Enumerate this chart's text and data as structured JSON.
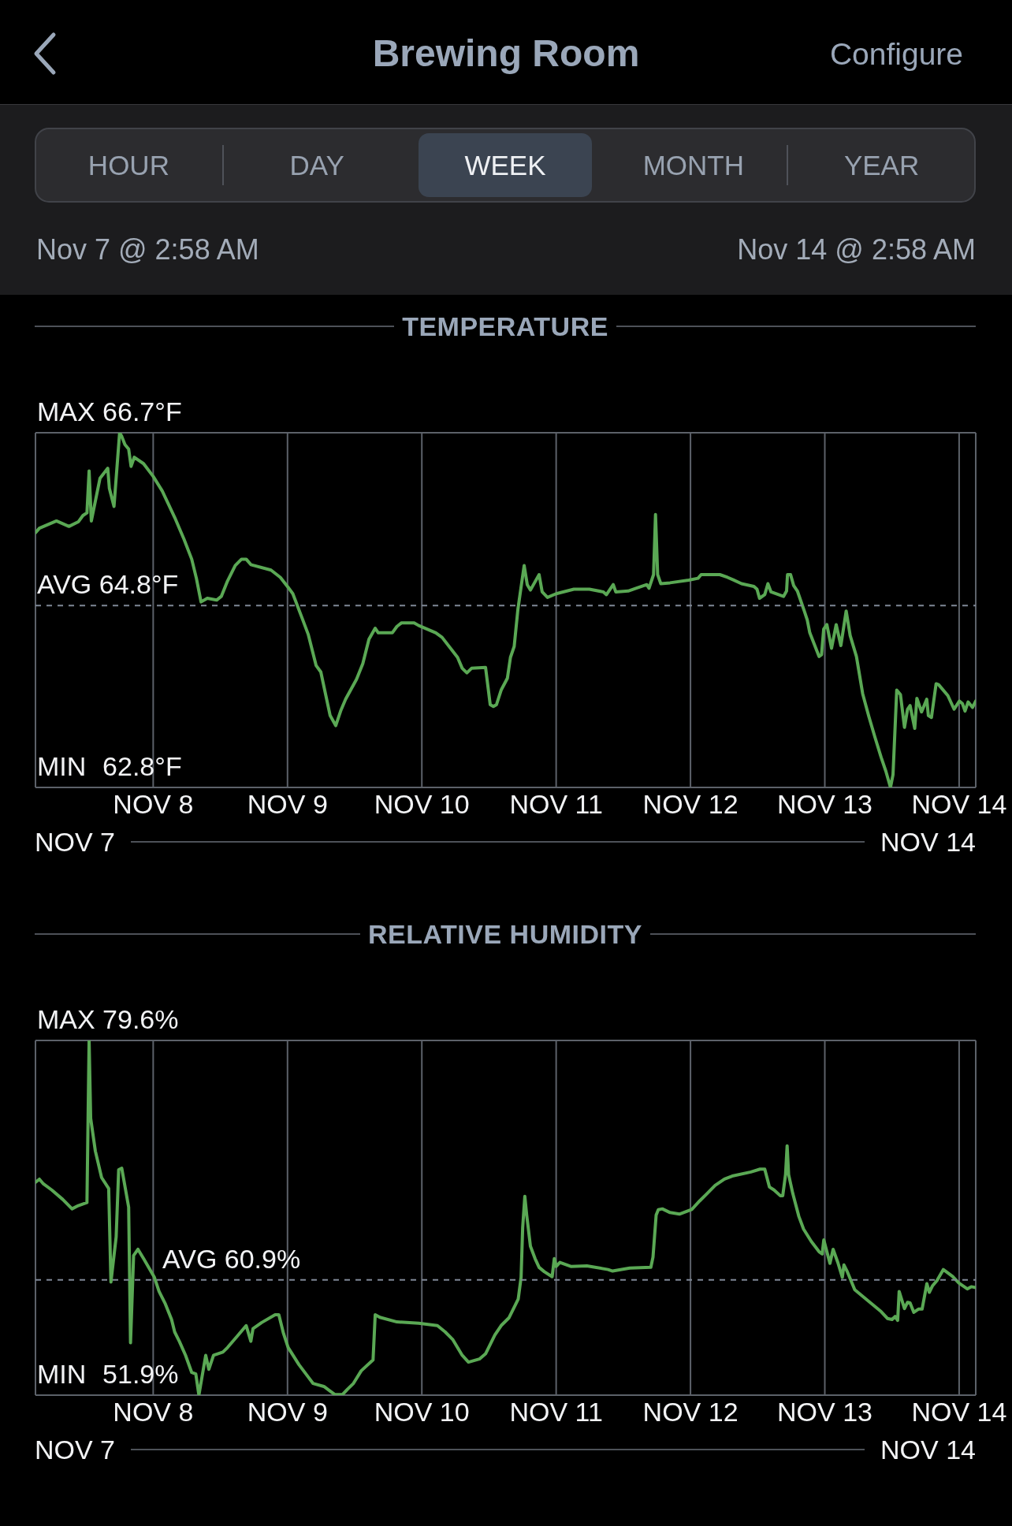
{
  "chart_data": [
    {
      "type": "other",
      "title": "Brewing Room",
      "annotations": [
        "Configure",
        "HOUR",
        "DAY",
        "WEEK",
        "MONTH",
        "YEAR",
        "Nov 7 @ 2:58 AM",
        "Nov 14 @ 2:58 AM"
      ]
    },
    {
      "type": "line",
      "title": "TEMPERATURE",
      "color": "#5aa854",
      "x": [
        "--11-07T02:58",
        "--11-07T03:40",
        "--11-07T06:43",
        "--11-07T08:57",
        "--11-07T10:37",
        "--11-07T11:27",
        "--11-07T12:10",
        "--11-07T12:33",
        "--11-07T12:57",
        "--11-07T14:30",
        "--11-07T15:53",
        "--11-07T16:10",
        "--11-07T17:00",
        "--11-07T18:00",
        "--11-07T18:23",
        "--11-07T18:57",
        "--11-07T19:37",
        "--11-07T20:03",
        "--11-07T20:37",
        "--11-07T22:17",
        "--11-08T00:00",
        "--11-08T01:37",
        "--11-08T03:50",
        "--11-08T05:30",
        "--11-08T06:53",
        "--11-08T07:43",
        "--11-08T08:33",
        "--11-08T09:40",
        "--11-08T11:20",
        "--11-08T12:10",
        "--11-08T13:17",
        "--11-08T14:40",
        "--11-08T15:47",
        "--11-08T16:37",
        "--11-08T17:27",
        "--11-08T21:03",
        "--11-08T22:43",
        "--11-09T00:07",
        "--11-09T00:57",
        "--11-09T02:37",
        "--11-09T03:43",
        "--11-09T05:07",
        "--11-09T05:57",
        "--11-09T07:37",
        "--11-09T08:37",
        "--11-09T09:33",
        "--11-09T10:23",
        "--11-09T12:20",
        "--11-09T13:27",
        "--11-09T14:33",
        "--11-09T15:40",
        "--11-09T16:13",
        "--11-09T18:43",
        "--11-09T19:33",
        "--11-09T20:23",
        "--11-09T22:37",
        "--11-09T23:27",
        "--11-10T02:30",
        "--11-10T03:37",
        "--11-10T06:23",
        "--11-10T07:13",
        "--11-10T08:03",
        "--11-10T08:53",
        "--11-10T11:23",
        "--11-10T12:13",
        "--11-10T12:47",
        "--11-10T13:20",
        "--11-10T14:10",
        "--11-10T15:17",
        "--11-10T15:50",
        "--11-10T16:30",
        "--11-10T17:10",
        "--11-10T18:17",
        "--11-10T18:50",
        "--11-10T19:24",
        "--11-10T20:57",
        "--11-10T21:30",
        "--11-10T22:27",
        "--11-11T00:00",
        "--11-11T03:10",
        "--11-11T05:56",
        "--11-11T08:26",
        "--11-11T08:59",
        "--11-11T10:12",
        "--11-11T10:39",
        "--11-11T12:52",
        "--11-11T14:15",
        "--11-11T16:12",
        "--11-11T16:35",
        "--11-11T17:24",
        "--11-11T17:45",
        "--11-11T18:08",
        "--11-11T18:42",
        "--11-11T20:21",
        "--11-11T23:41",
        "--11-12T01:21",
        "--11-12T01:54",
        "--11-12T03:00",
        "--11-12T05:14",
        "--11-12T06:37",
        "--11-12T07:43",
        "--11-12T09:07",
        "--11-12T11:20",
        "--11-12T11:53",
        "--11-12T12:20",
        "--11-12T13:16",
        "--11-12T13:50",
        "--11-12T14:23",
        "--11-12T16:37",
        "--11-12T17:10",
        "--11-12T17:20",
        "--11-12T17:53",
        "--11-12T18:26",
        "--11-12T19:06",
        "--11-12T20:20",
        "--11-12T20:52",
        "--11-12T21:19",
        "--11-12T22:58",
        "--11-12T23:25",
        "--11-12T23:48",
        "--11-13T00:22",
        "--11-13T01:12",
        "--11-13T02:02",
        "--11-13T02:52",
        "--11-13T03:49",
        "--11-13T04:32",
        "--11-13T05:39",
        "--11-13T06:46",
        "--11-13T07:52",
        "--11-13T08:58",
        "--11-13T10:04",
        "--11-13T10:54",
        "--11-13T11:44",
        "--11-13T12:11",
        "--11-13T12:51",
        "--11-13T13:31",
        "--11-13T14:14",
        "--11-13T14:47",
        "--11-13T15:14",
        "--11-13T16:04",
        "--11-13T16:27",
        "--11-13T17:17",
        "--11-13T18:13",
        "--11-13T18:30",
        "--11-13T19:03",
        "--11-13T19:53",
        "--11-13T20:20",
        "--11-13T21:59",
        "--11-13T23:06",
        "--11-14T00:03",
        "--11-14T00:36",
        "--11-14T01:03",
        "--11-14T01:36",
        "--11-14T02:24",
        "--11-14T02:58"
      ],
      "values": [
        65.6,
        65.65,
        65.73,
        65.67,
        65.72,
        65.79,
        65.82,
        66.28,
        65.73,
        66.2,
        66.31,
        66.09,
        65.89,
        66.7,
        66.66,
        66.57,
        66.52,
        66.33,
        66.43,
        66.36,
        66.22,
        66.06,
        65.77,
        65.53,
        65.31,
        65.1,
        64.84,
        64.88,
        64.86,
        64.9,
        65.07,
        65.24,
        65.31,
        65.31,
        65.25,
        65.19,
        65.11,
        65.0,
        64.93,
        64.66,
        64.48,
        64.14,
        64.07,
        63.59,
        63.48,
        63.65,
        63.77,
        63.99,
        64.16,
        64.43,
        64.55,
        64.5,
        64.5,
        64.57,
        64.61,
        64.61,
        64.58,
        64.5,
        64.45,
        64.23,
        64.11,
        64.06,
        64.11,
        64.12,
        63.71,
        63.69,
        63.71,
        63.87,
        64.0,
        64.23,
        64.35,
        64.76,
        65.24,
        65.03,
        64.97,
        65.14,
        64.95,
        64.89,
        64.93,
        64.98,
        64.98,
        64.95,
        64.92,
        65.03,
        64.95,
        64.96,
        64.99,
        65.03,
        64.99,
        65.14,
        65.8,
        65.14,
        65.04,
        65.05,
        65.08,
        65.1,
        65.14,
        65.14,
        65.14,
        65.11,
        65.08,
        65.04,
        65.01,
        64.98,
        64.88,
        64.92,
        65.04,
        64.95,
        64.9,
        64.96,
        65.14,
        65.14,
        65.02,
        64.96,
        64.74,
        64.64,
        64.5,
        64.24,
        64.26,
        64.54,
        64.59,
        64.33,
        64.59,
        64.36,
        64.74,
        64.47,
        64.24,
        63.83,
        63.58,
        63.35,
        63.13,
        62.98,
        62.8,
        62.94,
        63.87,
        63.82,
        63.46,
        63.66,
        63.7,
        63.45,
        63.78,
        63.63,
        63.77,
        63.59,
        63.57,
        63.94,
        63.93,
        63.81,
        63.66,
        63.75,
        63.72,
        63.64,
        63.74,
        63.68,
        63.75
      ],
      "xlim": [
        "--11-07T02:58",
        "--11-14T02:58"
      ],
      "xticks": [
        {
          "value": "--11-08",
          "label": "NOV 8"
        },
        {
          "value": "--11-09",
          "label": "NOV 9"
        },
        {
          "value": "--11-10",
          "label": "NOV 10"
        },
        {
          "value": "--11-11",
          "label": "NOV 11"
        },
        {
          "value": "--11-12",
          "label": "NOV 12"
        },
        {
          "value": "--11-13",
          "label": "NOV 13"
        },
        {
          "value": "--11-14",
          "label": "NOV 14"
        }
      ],
      "ylim": [
        62.8,
        66.7
      ],
      "yticks": [
        {
          "value": 66.7,
          "label": "66.7°F"
        },
        {
          "value": 62.8,
          "label": "62.8°F"
        }
      ],
      "grid": true,
      "ref_lines": [
        {
          "axis": "y",
          "value": 64.8,
          "label": "AVG 64.8°F",
          "color": "#7f8896",
          "line_style": "dashed"
        }
      ],
      "annotations": [
        "MAX",
        "MIN",
        "NOV 7",
        "NOV 14"
      ]
    },
    {
      "type": "line",
      "title": "RELATIVE HUMIDITY",
      "color": "#5aa854",
      "x": [
        "--11-07T02:58",
        "--11-07T03:40",
        "--11-07T04:23",
        "--11-07T05:53",
        "--11-07T07:50",
        "--11-07T09:30",
        "--11-07T10:37",
        "--11-07T12:10",
        "--11-07T12:33",
        "--11-07T12:50",
        "--11-07T13:40",
        "--11-07T14:47",
        "--11-07T16:03",
        "--11-07T16:27",
        "--11-07T17:23",
        "--11-07T17:50",
        "--11-07T18:23",
        "--11-07T19:37",
        "--11-07T19:57",
        "--11-07T20:30",
        "--11-07T21:17",
        "--11-07T22:17",
        "--11-08T00:13",
        "--11-08T01:03",
        "--11-08T02:10",
        "--11-08T03:17",
        "--11-08T03:50",
        "--11-08T04:40",
        "--11-08T05:47",
        "--11-08T06:53",
        "--11-08T07:37",
        "--11-08T08:10",
        "--11-08T09:23",
        "--11-08T09:57",
        "--11-08T10:47",
        "--11-08T12:27",
        "--11-08T13:17",
        "--11-08T14:57",
        "--11-08T16:37",
        "--11-08T17:27",
        "--11-08T17:50",
        "--11-08T19:23",
        "--11-08T21:47",
        "--11-08T22:27",
        "--11-08T23:17",
        "--11-09T00:07",
        "--11-09T02:03",
        "--11-09T03:43",
        "--11-09T04:33",
        "--11-09T06:30",
        "--11-09T07:37",
        "--11-09T08:27",
        "--11-09T09:50",
        "--11-09T10:40",
        "--11-09T11:47",
        "--11-09T13:10",
        "--11-09T15:17",
        "--11-09T15:40",
        "--11-09T16:30",
        "--11-09T19:33",
        "--11-09T23:27",
        "--11-10T02:47",
        "--11-10T04:10",
        "--11-10T05:33",
        "--11-10T07:13",
        "--11-10T08:20",
        "--11-10T10:17",
        "--11-10T11:23",
        "--11-10T13:03",
        "--11-10T14:10",
        "--11-10T15:33",
        "--11-10T16:40",
        "--11-10T17:13",
        "--11-10T17:44",
        "--11-10T18:01",
        "--11-10T18:24",
        "--11-10T18:44",
        "--11-10T19:24",
        "--11-10T20:14",
        "--11-10T20:57",
        "--11-10T21:53",
        "--11-10T23:17",
        "--11-10T23:40",
        "--11-11T00:00",
        "--11-11T00:40",
        "--11-11T02:37",
        "--11-11T05:29",
        "--11-11T09:16",
        "--11-11T10:05",
        "--11-11T13:09",
        "--11-11T16:55",
        "--11-11T17:18",
        "--11-11T17:52",
        "--11-11T18:15",
        "--11-11T18:58",
        "--11-11T20:21",
        "--11-11T22:01",
        "--11-12T00:14",
        "--11-12T01:37",
        "--11-12T03:01",
        "--11-12T04:24",
        "--11-12T06:04",
        "--11-12T07:27",
        "--11-12T10:47",
        "--11-12T12:26",
        "--11-12T13:16",
        "--11-12T14:06",
        "--11-12T14:56",
        "--11-12T16:02",
        "--11-12T16:29",
        "--11-12T16:59",
        "--11-12T17:16",
        "--11-12T17:32",
        "--11-12T18:16",
        "--11-12T19:22",
        "--11-12T20:12",
        "--11-12T21:35",
        "--11-12T22:59",
        "--11-12T23:32",
        "--11-12T23:49",
        "--11-13T00:55",
        "--11-13T01:29",
        "--11-13T02:19",
        "--11-13T03:08",
        "--11-13T03:25",
        "--11-13T03:58",
        "--11-13T05:21",
        "--11-13T07:51",
        "--11-13T10:04",
        "--11-13T11:11",
        "--11-13T12:01",
        "--11-13T12:34",
        "--11-13T13:01",
        "--11-13T13:17",
        "--11-13T14:14",
        "--11-13T14:47",
        "--11-13T15:14",
        "--11-13T15:54",
        "--11-13T16:44",
        "--11-13T17:23",
        "--11-13T18:14",
        "--11-13T18:40",
        "--11-13T19:13",
        "--11-13T20:03",
        "--11-13T21:10",
        "--11-13T22:50",
        "--11-13T23:56",
        "--11-14T01:27",
        "--11-14T02:10",
        "--11-14T02:58"
      ],
      "values": [
        68.52,
        68.77,
        68.4,
        67.92,
        67.19,
        66.45,
        66.7,
        66.94,
        79.6,
        73.51,
        70.96,
        68.89,
        68.04,
        60.73,
        64.26,
        69.5,
        69.62,
        66.58,
        55.99,
        62.8,
        63.29,
        62.56,
        61.1,
        60.0,
        59.03,
        57.81,
        56.84,
        56.11,
        55.01,
        53.67,
        53.55,
        51.9,
        55.01,
        53.92,
        55.01,
        55.26,
        55.62,
        56.47,
        57.33,
        56.11,
        57.09,
        57.57,
        58.18,
        58.18,
        56.72,
        55.62,
        54.28,
        53.31,
        52.82,
        52.58,
        52.22,
        51.95,
        51.95,
        52.34,
        52.82,
        53.8,
        54.65,
        58.18,
        57.98,
        57.62,
        57.52,
        57.33,
        56.84,
        56.23,
        55.01,
        54.48,
        54.72,
        55.13,
        56.6,
        57.33,
        57.93,
        58.91,
        59.4,
        61.1,
        64.99,
        67.43,
        65.97,
        63.53,
        62.56,
        61.88,
        61.54,
        61.15,
        62.56,
        61.95,
        62.27,
        61.95,
        62.0,
        61.71,
        61.59,
        61.83,
        61.88,
        62.68,
        65.97,
        66.38,
        66.45,
        66.16,
        66.04,
        66.41,
        67.06,
        67.67,
        68.28,
        68.77,
        69.01,
        69.33,
        69.55,
        69.55,
        68.16,
        67.92,
        67.48,
        67.48,
        69.13,
        71.37,
        69.13,
        67.67,
        65.85,
        64.87,
        63.9,
        63.1,
        62.93,
        64.02,
        62.19,
        63.29,
        62.27,
        61.1,
        62.07,
        61.59,
        60.13,
        59.23,
        58.42,
        57.89,
        57.81,
        58.05,
        57.74,
        60.0,
        58.66,
        59.15,
        59.1,
        58.37,
        58.62,
        58.62,
        60.61,
        59.93,
        60.42,
        60.86,
        61.71,
        61.17,
        60.66,
        60.2,
        60.37,
        60.3
      ],
      "xlim": [
        "--11-07T02:58",
        "--11-14T02:58"
      ],
      "xticks": [
        {
          "value": "--11-08",
          "label": "NOV 8"
        },
        {
          "value": "--11-09",
          "label": "NOV 9"
        },
        {
          "value": "--11-10",
          "label": "NOV 10"
        },
        {
          "value": "--11-11",
          "label": "NOV 11"
        },
        {
          "value": "--11-12",
          "label": "NOV 12"
        },
        {
          "value": "--11-13",
          "label": "NOV 13"
        },
        {
          "value": "--11-14",
          "label": "NOV 14"
        }
      ],
      "ylim": [
        51.9,
        79.6
      ],
      "yticks": [
        {
          "value": 79.6,
          "label": "79.6%"
        },
        {
          "value": 51.9,
          "label": "51.9%"
        }
      ],
      "grid": true,
      "ref_lines": [
        {
          "axis": "y",
          "value": 60.9,
          "label": "AVG 60.9%",
          "color": "#7f8896",
          "line_style": "dashed"
        }
      ],
      "annotations": [
        "MAX",
        "MIN",
        "NOV 7",
        "NOV 14"
      ]
    }
  ]
}
